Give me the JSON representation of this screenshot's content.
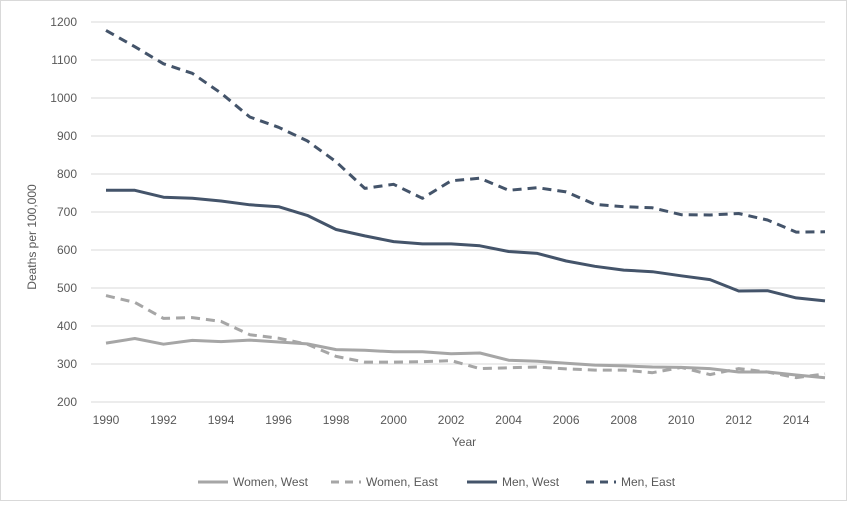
{
  "chart_data": {
    "type": "line",
    "title": "",
    "xlabel": "Year",
    "ylabel": "Deaths per 100,000",
    "xlim": [
      1990,
      2015
    ],
    "ylim": [
      200,
      1200
    ],
    "x": [
      1990,
      1991,
      1992,
      1993,
      1994,
      1995,
      1996,
      1997,
      1998,
      1999,
      2000,
      2001,
      2002,
      2003,
      2004,
      2005,
      2006,
      2007,
      2008,
      2009,
      2010,
      2011,
      2012,
      2013,
      2014,
      2015
    ],
    "x_ticks": [
      1990,
      1992,
      1994,
      1996,
      1998,
      2000,
      2002,
      2004,
      2006,
      2008,
      2010,
      2012,
      2014
    ],
    "y_ticks": [
      200,
      300,
      400,
      500,
      600,
      700,
      800,
      900,
      1000,
      1100,
      1200
    ],
    "grid": "horizontal",
    "legend_position": "bottom",
    "series": [
      {
        "name": "Women, West",
        "color": "#a6a6a6",
        "dash": "solid",
        "values": [
          355,
          367,
          352,
          362,
          359,
          363,
          358,
          353,
          338,
          336,
          332,
          332,
          327,
          329,
          310,
          307,
          302,
          297,
          295,
          292,
          291,
          288,
          279,
          279,
          271,
          264
        ]
      },
      {
        "name": "Women, East",
        "color": "#a6a6a6",
        "dash": "dashed",
        "values": [
          480,
          462,
          420,
          422,
          412,
          377,
          368,
          352,
          320,
          305,
          305,
          306,
          309,
          288,
          290,
          292,
          287,
          284,
          284,
          277,
          291,
          272,
          288,
          279,
          264,
          274
        ]
      },
      {
        "name": "Men, West",
        "color": "#44546a",
        "dash": "solid",
        "values": [
          757,
          757,
          739,
          736,
          729,
          719,
          714,
          691,
          654,
          637,
          622,
          616,
          616,
          611,
          596,
          591,
          571,
          557,
          547,
          543,
          532,
          522,
          492,
          493,
          474,
          466
        ]
      },
      {
        "name": "Men, East",
        "color": "#44546a",
        "dash": "dashed",
        "values": [
          1178,
          1135,
          1090,
          1065,
          1013,
          950,
          923,
          887,
          832,
          762,
          773,
          736,
          782,
          789,
          757,
          764,
          753,
          720,
          714,
          711,
          693,
          692,
          696,
          679,
          647,
          648
        ]
      }
    ]
  }
}
